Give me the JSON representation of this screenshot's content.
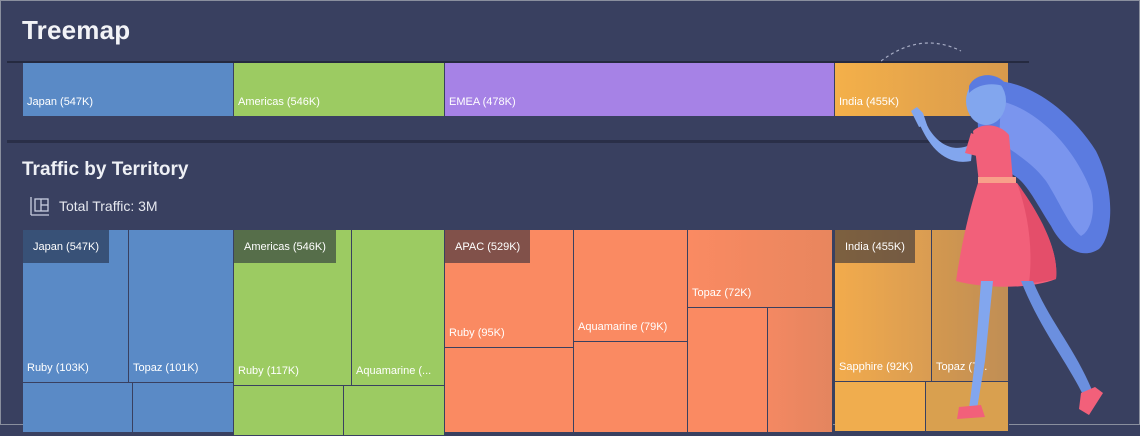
{
  "page": {
    "title": "Treemap",
    "section_title": "Traffic by Territory",
    "total_label": "Total Traffic: 3M"
  },
  "chart_data": [
    {
      "type": "treemap",
      "title": "Treemap",
      "values_unit": "K",
      "items": [
        {
          "name": "Japan",
          "value": 547,
          "label": "Japan (547K)",
          "color": "#5a8ac6"
        },
        {
          "name": "Americas",
          "value": 546,
          "label": "Americas (546K)",
          "color": "#9ccb62"
        },
        {
          "name": "EMEA",
          "value": 478,
          "label": "EMEA (478K)",
          "color": "#a682e6"
        },
        {
          "name": "India",
          "value": 455,
          "label": "India (455K)",
          "color": "#f0ad4e"
        }
      ]
    },
    {
      "type": "treemap",
      "title": "Traffic by Territory",
      "total": "3M",
      "groups": [
        {
          "name": "Japan",
          "value": 547,
          "label": "Japan (547K)",
          "color": "#5a8ac6",
          "children": [
            {
              "name": "Ruby",
              "value": 103,
              "label": "Ruby (103K)"
            },
            {
              "name": "Topaz",
              "value": 101,
              "label": "Topaz (101K)"
            }
          ]
        },
        {
          "name": "Americas",
          "value": 546,
          "label": "Americas (546K)",
          "color": "#9ccb62",
          "children": [
            {
              "name": "Ruby",
              "value": 117,
              "label": "Ruby (117K)"
            },
            {
              "name": "Aquamarine",
              "value": null,
              "label": "Aquamarine (..."
            }
          ]
        },
        {
          "name": "APAC",
          "value": 529,
          "label": "APAC (529K)",
          "color": "#fa8a62",
          "children": [
            {
              "name": "Ruby",
              "value": 95,
              "label": "Ruby (95K)"
            },
            {
              "name": "Aquamarine",
              "value": 79,
              "label": "Aquamarine (79K)"
            },
            {
              "name": "Topaz",
              "value": 72,
              "label": "Topaz (72K)"
            }
          ]
        },
        {
          "name": "India",
          "value": 455,
          "label": "India (455K)",
          "color": "#f0ad4e",
          "children": [
            {
              "name": "Sapphire",
              "value": 92,
              "label": "Sapphire (92K)"
            },
            {
              "name": "Topaz",
              "value": null,
              "label": "Topaz (7..."
            }
          ]
        }
      ]
    }
  ],
  "colors": {
    "background": "#394060",
    "japan": "#5a8ac6",
    "americas": "#9ccb62",
    "emea": "#a682e6",
    "apac": "#fa8a62",
    "india": "#f0ad4e"
  }
}
